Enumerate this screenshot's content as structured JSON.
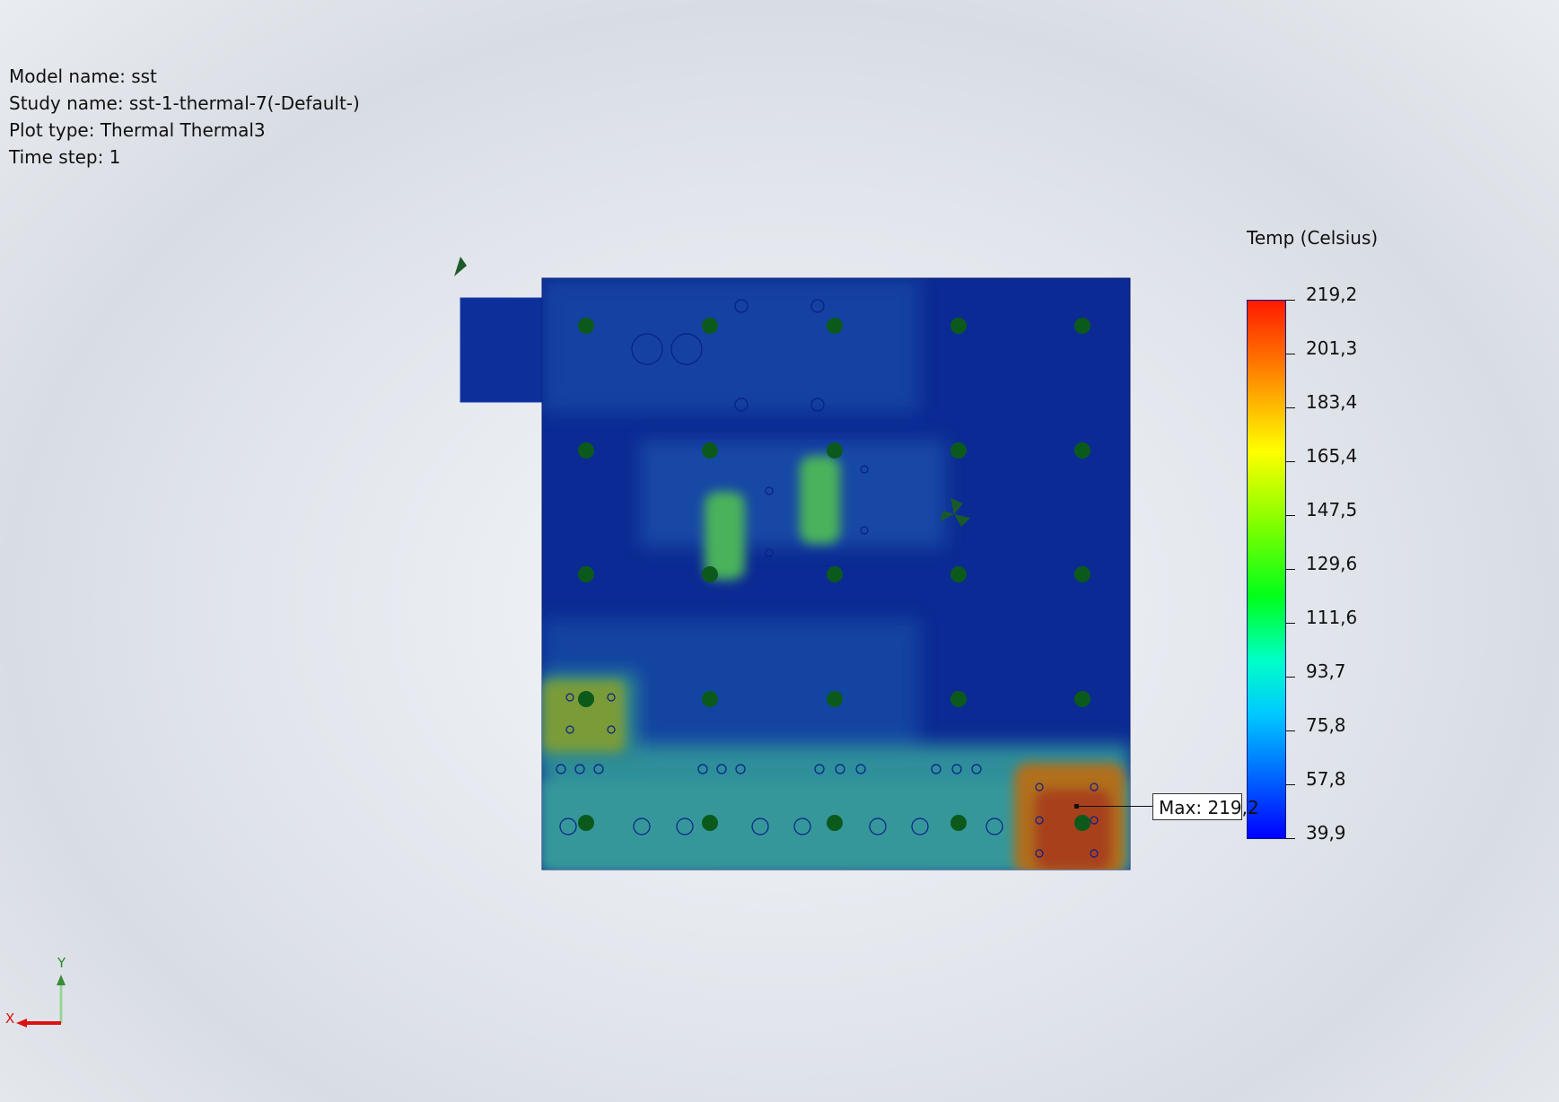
{
  "info": {
    "model_name": "Model name: sst",
    "study_name": "Study name: sst-1-thermal-7(-Default-)",
    "plot_type": "Plot type: Thermal Thermal3",
    "time_step": "Time step: 1"
  },
  "legend": {
    "title": "Temp (Celsius)",
    "values": [
      "219,2",
      "201,3",
      "183,4",
      "165,4",
      "147,5",
      "129,6",
      "111,6",
      "93,7",
      "75,8",
      "57,8",
      "39,9"
    ]
  },
  "max_marker": {
    "label": "Max: 219,2"
  },
  "axis": {
    "x_label": "X",
    "y_label": "Y"
  },
  "colors": {
    "plate": "#0d2f9a",
    "hot": "#b03a10",
    "warm": "#4aa84a",
    "mount_hole": "#0a5a1a"
  }
}
